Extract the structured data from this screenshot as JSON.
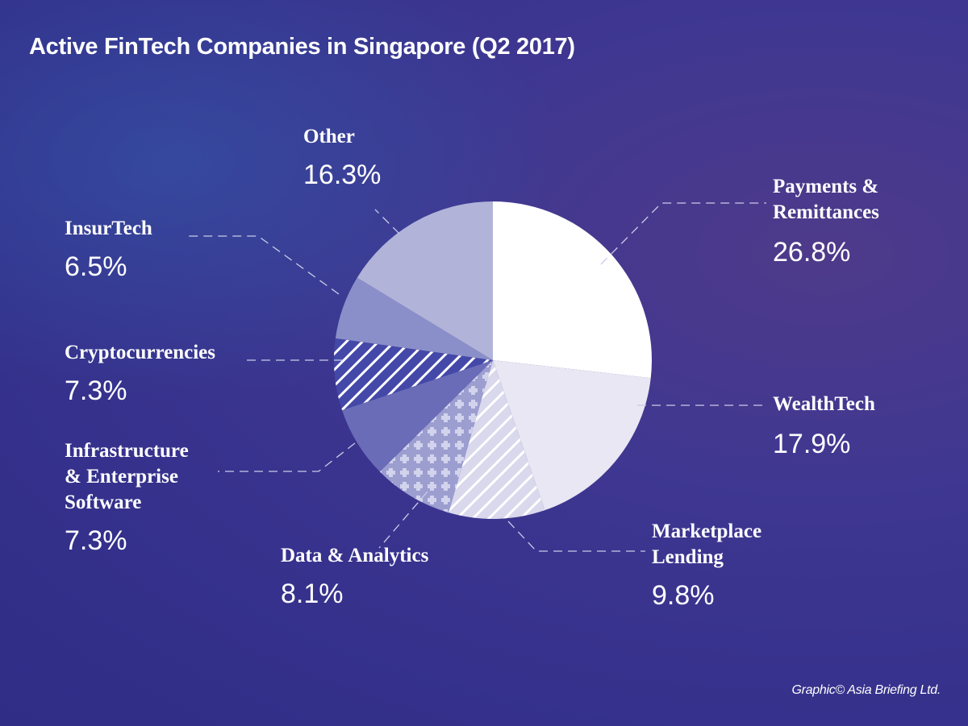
{
  "title": "Active FinTech Companies in Singapore (Q2 2017)",
  "credit": "Graphic© Asia Briefing Ltd.",
  "chart_data": {
    "type": "pie",
    "title": "Active FinTech Companies in Singapore (Q2 2017)",
    "unit": "%",
    "categories": [
      "Payments & Remittances",
      "WealthTech",
      "Marketplace Lending",
      "Data & Analytics",
      "Infrastructure & Enterprise Software",
      "Cryptocurrencies",
      "InsurTech",
      "Other"
    ],
    "values": [
      26.8,
      17.9,
      9.8,
      8.1,
      7.3,
      7.3,
      6.5,
      16.3
    ],
    "labels": [
      "26.8%",
      "17.9%",
      "9.8%",
      "8.1%",
      "7.3%",
      "7.3%",
      "6.5%",
      "16.3%"
    ],
    "fills": [
      "#ffffff",
      "#e9e7f3",
      "hatch-light",
      "crosses",
      "#6a6cb8",
      "hatch-dark",
      "#8b8fc9",
      "#b1b3d9"
    ],
    "start": "top, clockwise"
  }
}
